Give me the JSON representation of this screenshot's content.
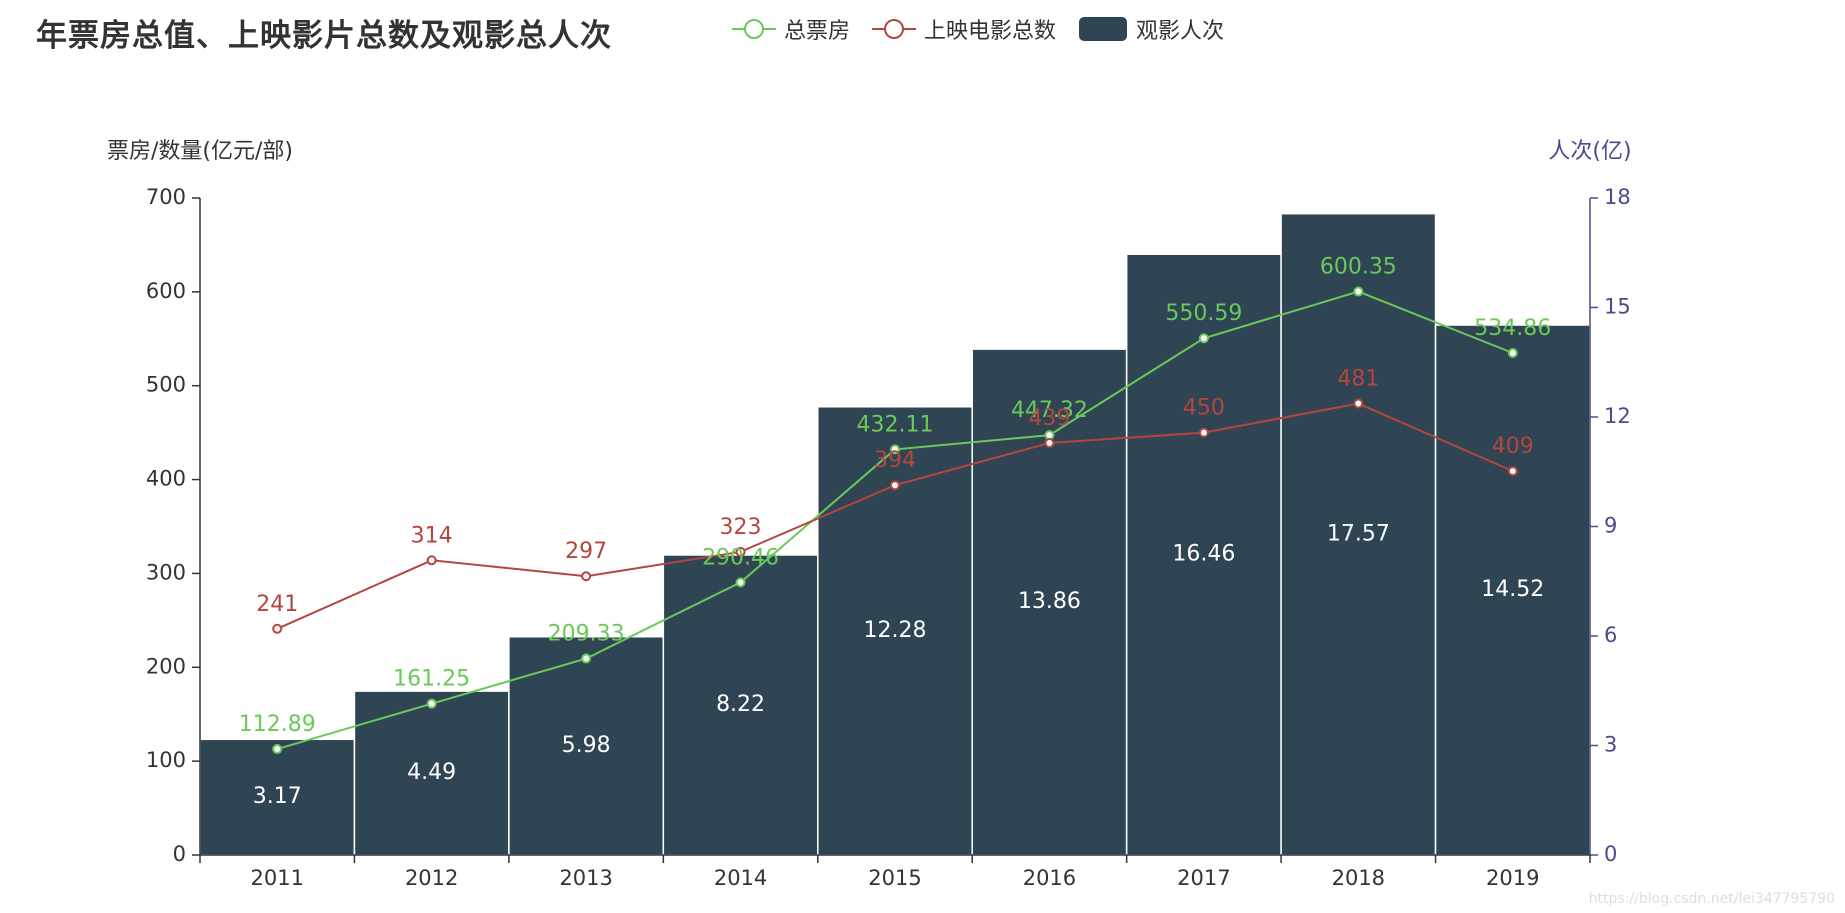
{
  "chart_data": {
    "type": "bar+line",
    "title": "年票房总值、上映影片总数及观影总人次",
    "categories": [
      "2011",
      "2012",
      "2013",
      "2014",
      "2015",
      "2016",
      "2017",
      "2018",
      "2019"
    ],
    "series": [
      {
        "name": "总票房",
        "type": "line",
        "axis": "left",
        "color": "#6bc95a",
        "values": [
          112.89,
          161.25,
          209.33,
          290.46,
          432.11,
          447.32,
          550.59,
          600.35,
          534.86
        ]
      },
      {
        "name": "上映电影总数",
        "type": "line",
        "axis": "left",
        "color": "#b5453f",
        "values": [
          241,
          314,
          297,
          323,
          394,
          439,
          450,
          481,
          409
        ]
      },
      {
        "name": "观影人次",
        "type": "bar",
        "axis": "right",
        "color": "#2f4554",
        "values": [
          3.17,
          4.49,
          5.98,
          8.22,
          12.28,
          13.86,
          16.46,
          17.57,
          14.52
        ]
      }
    ],
    "yleft": {
      "label": "票房/数量(亿元/部)",
      "min": 0,
      "max": 700,
      "ticks": [
        0,
        100,
        200,
        300,
        400,
        500,
        600,
        700
      ],
      "color": "#333333"
    },
    "yright": {
      "label": "人次(亿)",
      "min": 0,
      "max": 18,
      "ticks": [
        0,
        3,
        6,
        9,
        12,
        15,
        18
      ],
      "color": "#4b4a8c"
    },
    "legend_position": "top-center",
    "grid": false
  },
  "watermark": "https://blog.csdn.net/lei347795790"
}
